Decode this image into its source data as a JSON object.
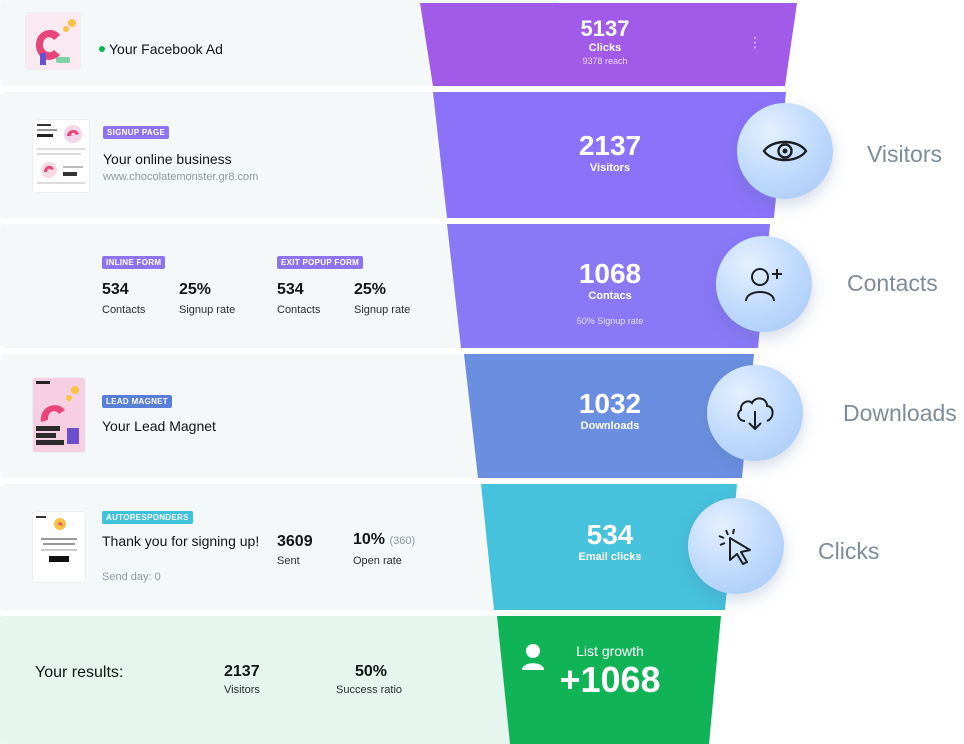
{
  "rows": {
    "ad": {
      "title": "Your Facebook Ad",
      "status": "active"
    },
    "signup": {
      "tag": "SIGNUP PAGE",
      "title": "Your online business",
      "url": "www.chocolatemonster.gr8.com"
    },
    "forms": {
      "inline": {
        "tag": "INLINE FORM",
        "contacts": "534",
        "contacts_label": "Contacts",
        "rate": "25%",
        "rate_label": "Signup rate"
      },
      "exit": {
        "tag": "EXIT POPUP FORM",
        "contacts": "534",
        "contacts_label": "Contacts",
        "rate": "25%",
        "rate_label": "Signup rate"
      }
    },
    "magnet": {
      "tag": "LEAD MAGNET",
      "title": "Your Lead Magnet"
    },
    "autoresponder": {
      "tag": "AUTORESPONDERS",
      "title": "Thank you for signing up!",
      "send_day": "Send day: 0",
      "sent": "3609",
      "sent_label": "Sent",
      "open_rate": "10%",
      "open_count": "(360)",
      "open_label": "Open rate"
    },
    "results": {
      "label": "Your results:",
      "visitors": "2137",
      "visitors_label": "Visitors",
      "success": "50%",
      "success_label": "Success ratio"
    }
  },
  "funnel": {
    "clicks": {
      "value": "5137",
      "label": "Clicks",
      "note": "9378 reach"
    },
    "visitors": {
      "value": "2137",
      "label": "Visitors"
    },
    "contacts": {
      "value": "1068",
      "label": "Contacs",
      "note": "50% Signup rate"
    },
    "downloads": {
      "value": "1032",
      "label": "Downloads"
    },
    "email": {
      "value": "534",
      "label": "Email clicks"
    },
    "growth": {
      "label": "List growth",
      "value": "+1068"
    }
  },
  "side_labels": {
    "visitors": "Visitors",
    "contacts": "Contacts",
    "downloads": "Downloads",
    "clicks": "Clicks"
  },
  "icons": {
    "visitors": "eye-icon",
    "contacts": "user-plus-icon",
    "downloads": "cloud-download-icon",
    "clicks": "cursor-click-icon",
    "growth": "user-icon"
  },
  "colors": {
    "stage1": "#a25ae8",
    "stage2": "#8b72f8",
    "stage3": "#8a78f6",
    "stage4": "#6b8fe0",
    "stage5": "#46c2dc",
    "stage6": "#10b457",
    "tag_purple": "#8f74f1",
    "tag_blue": "#5a7fd8",
    "tag_cyan": "#3fc1d9",
    "status_dot": "#10b457"
  }
}
